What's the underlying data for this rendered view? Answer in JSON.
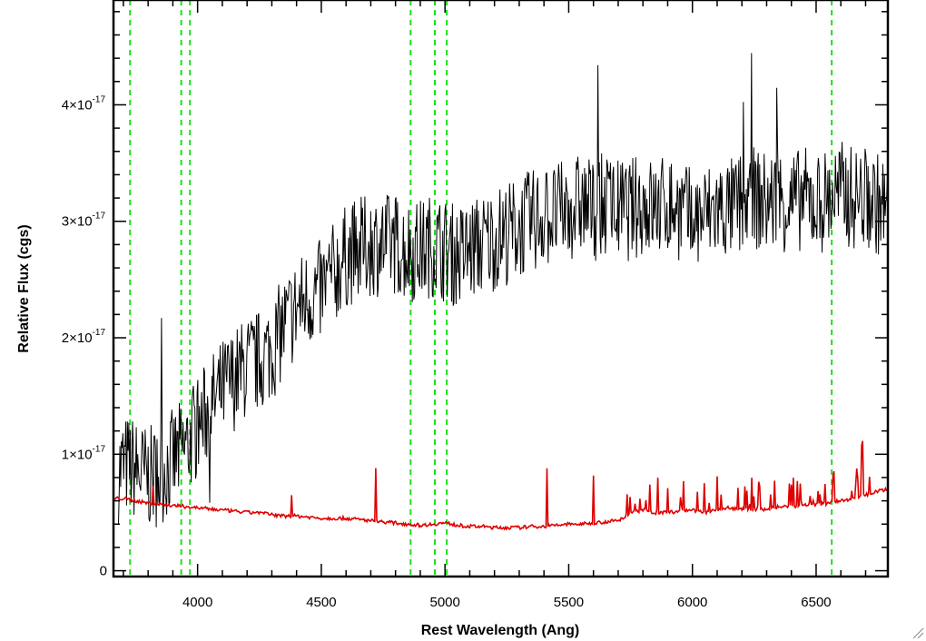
{
  "chart_data": {
    "type": "line",
    "title": "",
    "xlabel": "Rest Wavelength (Ang)",
    "ylabel": "Relative Flux (cgs)",
    "xlim": [
      3660,
      6790
    ],
    "ylim": [
      -0.05,
      4.9
    ],
    "y_unit_exponent": "-17",
    "x_ticks": [
      4000,
      4500,
      5000,
      5500,
      6000,
      6500
    ],
    "y_ticks": [
      {
        "value": 0,
        "label": "0"
      },
      {
        "value": 1,
        "label": "1×10"
      },
      {
        "value": 2,
        "label": "2×10"
      },
      {
        "value": 3,
        "label": "3×10"
      },
      {
        "value": 4,
        "label": "4×10"
      }
    ],
    "grid": false,
    "reference_lines": {
      "color": "#22dd22",
      "style": "dashed",
      "x": [
        3727,
        3934,
        3969,
        4861,
        4959,
        5007,
        6563
      ]
    },
    "series": [
      {
        "color": "#000000",
        "x": [
          3680,
          3700,
          3730,
          3760,
          3800,
          3850,
          3900,
          3950,
          3990,
          4050,
          4100,
          4150,
          4200,
          4250,
          4300,
          4350,
          4400,
          4450,
          4500,
          4550,
          4600,
          4650,
          4700,
          4750,
          4800,
          4850,
          4900,
          4950,
          5000,
          5050,
          5100,
          5150,
          5200,
          5250,
          5300,
          5350,
          5400,
          5450,
          5500,
          5550,
          5600,
          5650,
          5700,
          5750,
          5800,
          5850,
          5900,
          5950,
          6000,
          6050,
          6100,
          6150,
          6200,
          6250,
          6300,
          6350,
          6400,
          6450,
          6500,
          6550,
          6600,
          6650,
          6700,
          6750,
          6790
        ],
        "y": [
          0.85,
          0.9,
          0.9,
          0.85,
          0.8,
          0.82,
          0.95,
          1.05,
          1.2,
          1.4,
          1.55,
          1.65,
          1.75,
          1.8,
          1.9,
          2.1,
          2.25,
          2.35,
          2.4,
          2.55,
          2.7,
          2.75,
          2.8,
          2.8,
          2.8,
          2.75,
          2.75,
          2.8,
          2.75,
          2.7,
          2.75,
          2.8,
          2.85,
          2.9,
          2.95,
          3.0,
          3.05,
          3.05,
          3.1,
          3.15,
          3.1,
          3.15,
          3.1,
          3.1,
          3.15,
          3.1,
          3.15,
          3.1,
          3.0,
          3.05,
          3.1,
          3.1,
          3.15,
          3.2,
          3.15,
          3.2,
          3.15,
          3.2,
          3.15,
          3.2,
          3.25,
          3.2,
          3.2,
          3.15,
          3.1
        ]
      },
      {
        "color": "#dd0000",
        "x": [
          3660,
          3700,
          3750,
          3800,
          3850,
          3900,
          3950,
          4000,
          4050,
          4100,
          4150,
          4200,
          4250,
          4300,
          4350,
          4400,
          4450,
          4500,
          4550,
          4600,
          4650,
          4700,
          4750,
          4800,
          4850,
          4900,
          4950,
          5000,
          5050,
          5100,
          5150,
          5200,
          5250,
          5300,
          5350,
          5400,
          5450,
          5500,
          5550,
          5600,
          5650,
          5700,
          5750,
          5800,
          5850,
          5900,
          5950,
          6000,
          6050,
          6100,
          6150,
          6200,
          6250,
          6300,
          6350,
          6400,
          6450,
          6500,
          6550,
          6600,
          6650,
          6700,
          6750,
          6790
        ],
        "y": [
          0.62,
          0.62,
          0.6,
          0.58,
          0.57,
          0.56,
          0.55,
          0.54,
          0.53,
          0.52,
          0.51,
          0.5,
          0.5,
          0.48,
          0.47,
          0.47,
          0.46,
          0.45,
          0.45,
          0.45,
          0.44,
          0.43,
          0.42,
          0.41,
          0.4,
          0.39,
          0.4,
          0.41,
          0.39,
          0.38,
          0.38,
          0.37,
          0.37,
          0.37,
          0.38,
          0.38,
          0.39,
          0.4,
          0.4,
          0.41,
          0.42,
          0.43,
          0.5,
          0.52,
          0.5,
          0.5,
          0.51,
          0.52,
          0.5,
          0.52,
          0.54,
          0.53,
          0.52,
          0.53,
          0.55,
          0.55,
          0.56,
          0.57,
          0.58,
          0.6,
          0.62,
          0.65,
          0.68,
          0.7
        ]
      }
    ]
  }
}
